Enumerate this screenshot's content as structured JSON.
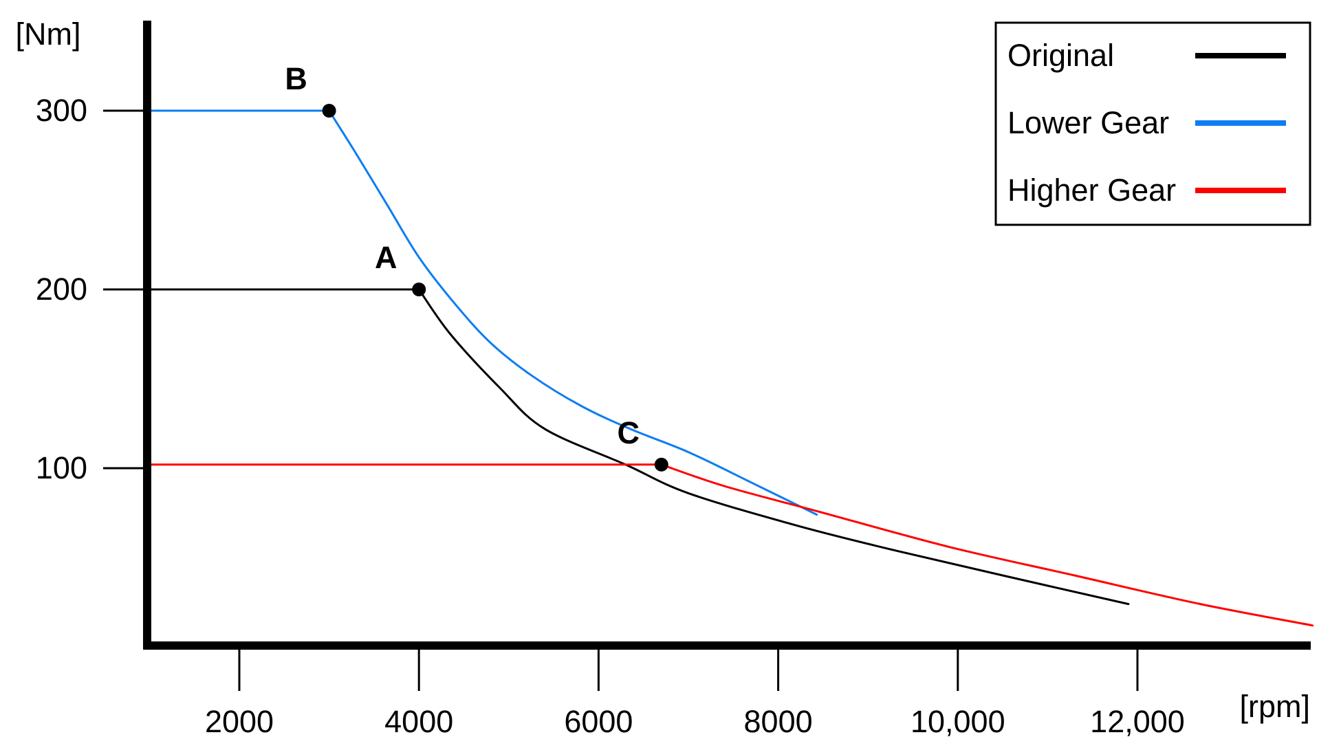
{
  "axes": {
    "x_label": "[rpm]",
    "y_label": "[Nm]",
    "x_ticks": [
      {
        "value": 2000,
        "label": "2000"
      },
      {
        "value": 4000,
        "label": "4000"
      },
      {
        "value": 6000,
        "label": "6000"
      },
      {
        "value": 8000,
        "label": "8000"
      },
      {
        "value": 10000,
        "label": "10,000"
      },
      {
        "value": 12000,
        "label": "12,000"
      }
    ],
    "y_ticks": [
      {
        "value": 100,
        "label": "100"
      },
      {
        "value": 200,
        "label": "200"
      },
      {
        "value": 300,
        "label": "300"
      }
    ]
  },
  "legend": {
    "items": [
      {
        "label": "Original",
        "color": "#000000"
      },
      {
        "label": "Lower Gear",
        "color": "#0d7df2"
      },
      {
        "label": "Higher Gear",
        "color": "#ff0000"
      }
    ]
  },
  "colors": {
    "axis": "#000000",
    "original": "#000000",
    "lower_gear": "#0d7df2",
    "higher_gear": "#ff0000",
    "marker_dot": "#000000"
  },
  "chart_data": {
    "type": "line",
    "xlabel": "[rpm]",
    "ylabel": "[Nm]",
    "xlim": [
      1000,
      14200
    ],
    "ylim": [
      0,
      350
    ],
    "grid": false,
    "legend_position": "top-right",
    "series": [
      {
        "name": "Original",
        "color": "#000000",
        "points": [
          [
            1000,
            200
          ],
          [
            4000,
            200
          ],
          [
            4350,
            175
          ],
          [
            4900,
            145
          ],
          [
            5400,
            122
          ],
          [
            6300,
            102
          ],
          [
            7000,
            86
          ],
          [
            8200,
            68
          ],
          [
            9300,
            54
          ],
          [
            10500,
            40
          ],
          [
            11900,
            24
          ]
        ]
      },
      {
        "name": "Lower Gear",
        "color": "#0d7df2",
        "points": [
          [
            1000,
            300
          ],
          [
            3000,
            300
          ],
          [
            3300,
            276
          ],
          [
            3650,
            247
          ],
          [
            4000,
            218
          ],
          [
            4400,
            192
          ],
          [
            4800,
            170
          ],
          [
            5250,
            152
          ],
          [
            5800,
            135
          ],
          [
            6350,
            122
          ],
          [
            7000,
            109
          ],
          [
            7700,
            92
          ],
          [
            8430,
            74
          ]
        ]
      },
      {
        "name": "Higher Gear",
        "color": "#ff0000",
        "points": [
          [
            1000,
            102
          ],
          [
            6700,
            102
          ],
          [
            7400,
            90
          ],
          [
            8430,
            76
          ],
          [
            9900,
            56
          ],
          [
            11300,
            40
          ],
          [
            12700,
            24
          ],
          [
            13950,
            12
          ]
        ]
      }
    ],
    "markers": [
      {
        "label": "A",
        "rpm": 4000,
        "nm": 200,
        "series": "Original"
      },
      {
        "label": "B",
        "rpm": 3000,
        "nm": 300,
        "series": "Lower Gear"
      },
      {
        "label": "C",
        "rpm": 6700,
        "nm": 102,
        "series": "Higher Gear"
      }
    ]
  }
}
